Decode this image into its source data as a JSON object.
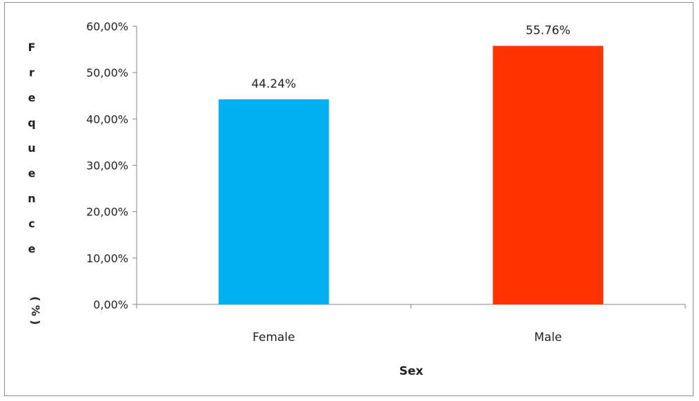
{
  "chart_data": {
    "type": "bar",
    "categories": [
      "Female",
      "Male"
    ],
    "values": [
      44.24,
      55.76
    ],
    "data_labels": [
      "44.24%",
      "55.76%"
    ],
    "colors": [
      "#00b0f0",
      "#ff3300"
    ],
    "xlabel": "Sex",
    "ylabel_chars": [
      "F",
      "r",
      "e",
      "q",
      "u",
      "e",
      "n",
      "c",
      "e",
      "(",
      "%",
      ")"
    ],
    "ylim": [
      0,
      60
    ],
    "yticks": [
      0,
      10,
      20,
      30,
      40,
      50,
      60
    ],
    "ytick_labels": [
      "0,00%",
      "10,00%",
      "20,00%",
      "30,00%",
      "40,00%",
      "50,00%",
      "60,00%"
    ],
    "grid": false,
    "legend": "none"
  }
}
